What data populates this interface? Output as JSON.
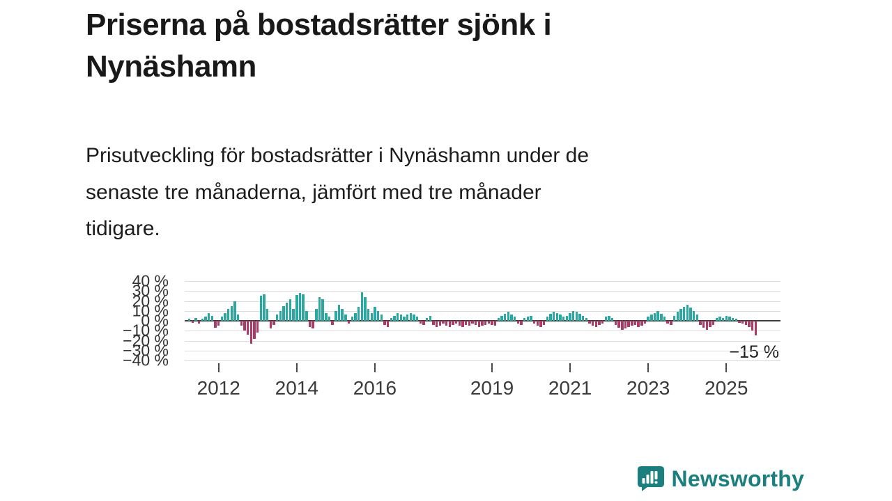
{
  "header": {
    "title_lines": [
      "Priserna på bostadsrätter sjönk i",
      "Nynäshamn"
    ],
    "description_lines": [
      "Prisutveckling för bostadsrätter i Nynäshamn under de",
      "senaste tre månaderna, jämfört med tre månader",
      "tidigare."
    ]
  },
  "chart_data": {
    "type": "bar",
    "title": "Priserna på bostadsrätter sjönk i Nynäshamn",
    "subtitle": "Prisutveckling för bostadsrätter i Nynäshamn under de senaste tre månaderna, jämfört med tre månader tidigare.",
    "unit": "%",
    "ylim": [
      -40,
      40
    ],
    "grid": true,
    "gridline_values": [
      40,
      30,
      20,
      10,
      0,
      -10,
      -20,
      -30,
      -40
    ],
    "ytick_labels": [
      "40 %",
      "30 %",
      "20 %",
      "10 %",
      "0 %",
      "−10 %",
      "−20 %",
      "−30 %",
      "−40 %"
    ],
    "xtick_years": [
      2012,
      2014,
      2016,
      2019,
      2021,
      2023,
      2025
    ],
    "start_month": "2011-04",
    "frequency": "monthly",
    "annotation": "−15 %",
    "latest_value": -15,
    "colors": {
      "positive": "#2aa7a0",
      "negative": "#ad3a66"
    },
    "values": [
      2,
      -2,
      3,
      -3,
      2,
      4,
      8,
      5,
      -7,
      -5,
      4,
      8,
      12,
      15,
      20,
      6,
      -5,
      -10,
      -14,
      -23,
      -18,
      -12,
      25,
      27,
      12,
      -8,
      -4,
      6,
      10,
      15,
      18,
      22,
      12,
      26,
      28,
      27,
      10,
      -6,
      -8,
      12,
      24,
      22,
      8,
      4,
      -4,
      10,
      16,
      12,
      6,
      -3,
      4,
      8,
      14,
      29,
      24,
      12,
      8,
      14,
      10,
      6,
      -4,
      -6,
      3,
      5,
      8,
      6,
      4,
      6,
      8,
      6,
      4,
      -3,
      -4,
      3,
      5,
      -4,
      -6,
      -5,
      -3,
      -5,
      -6,
      -4,
      -3,
      -5,
      -6,
      -4,
      -5,
      -3,
      -4,
      -6,
      -5,
      -4,
      -3,
      -4,
      -5,
      3,
      5,
      7,
      9,
      6,
      4,
      -3,
      -4,
      3,
      4,
      5,
      -3,
      -5,
      -6,
      -4,
      4,
      7,
      9,
      8,
      6,
      4,
      5,
      8,
      10,
      9,
      7,
      5,
      3,
      -3,
      -5,
      -6,
      -4,
      -3,
      4,
      5,
      3,
      -4,
      -7,
      -9,
      -8,
      -6,
      -5,
      -4,
      -6,
      -5,
      -3,
      4,
      6,
      8,
      10,
      7,
      4,
      -3,
      -4,
      5,
      9,
      12,
      14,
      16,
      13,
      10,
      6,
      -4,
      -7,
      -9,
      -6,
      -4,
      3,
      4,
      3,
      5,
      4,
      3,
      2,
      -2,
      -3,
      -4,
      -6,
      -10,
      -15
    ]
  },
  "branding": {
    "name": "Newsworthy",
    "color": "#1a7f7e"
  }
}
